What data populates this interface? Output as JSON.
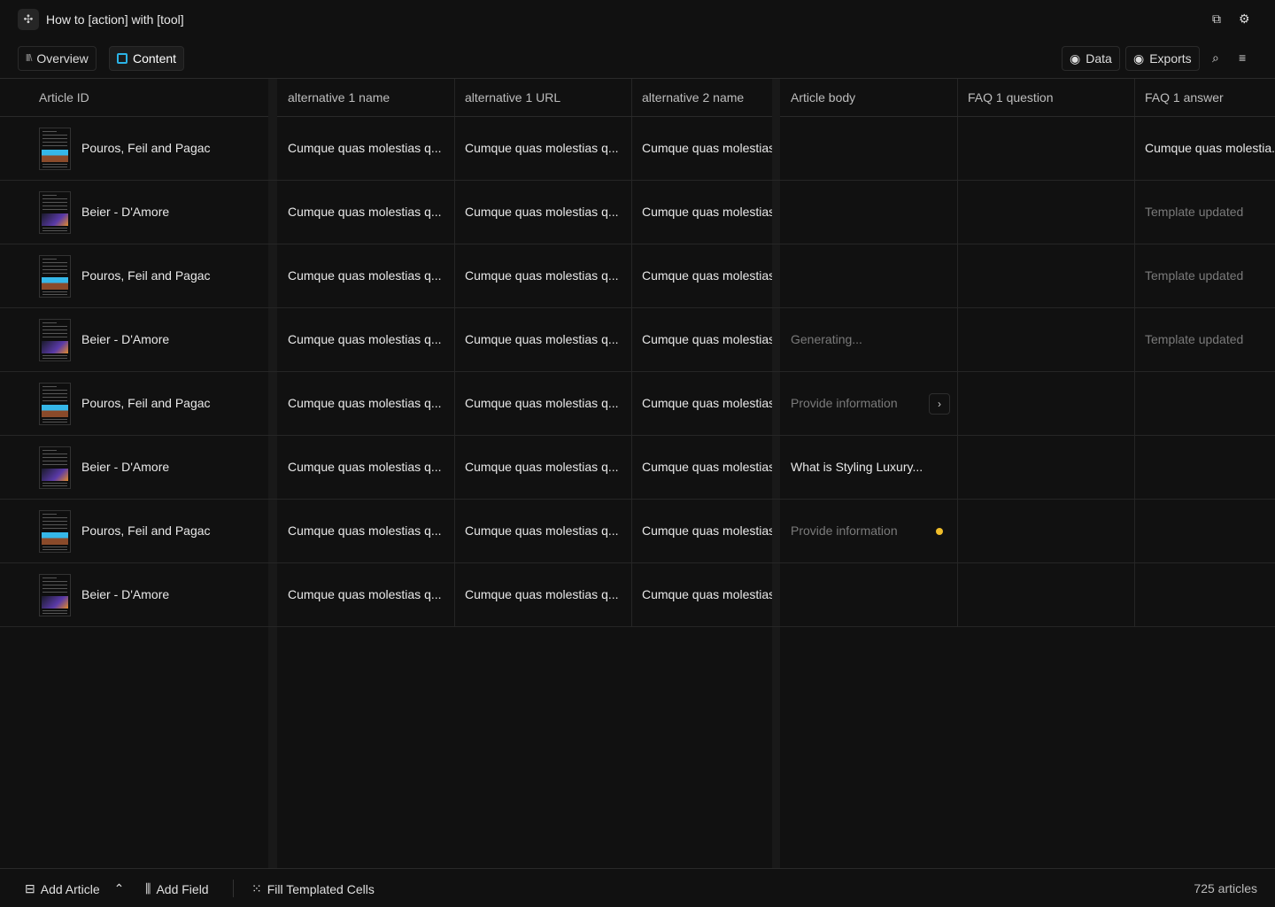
{
  "header": {
    "title": "How to [action] with [tool]",
    "logo_icon": "puzzle-icon",
    "right_icons": [
      "document-copy-icon",
      "gear-icon"
    ]
  },
  "tabs": [
    {
      "label": "Overview",
      "icon": "library-icon",
      "active": false
    },
    {
      "label": "Content",
      "icon": "content-icon",
      "active": true
    }
  ],
  "toolbar": {
    "data_label": "Data",
    "exports_label": "Exports"
  },
  "columns": [
    "Article ID",
    "alternative 1 name",
    "alternative 1 URL",
    "alternative 2 name",
    "Article body",
    "FAQ 1 question",
    "FAQ 1 answer"
  ],
  "rows": [
    {
      "id": "Pouros, Feil and Pagac",
      "thumb": "a",
      "c1": "Cumque quas molestias q...",
      "c2": "Cumque quas molestias q...",
      "c3": "Cumque quas molestias",
      "body": "",
      "body_state": "",
      "faq_q": "",
      "faq_a": "Cumque quas molestia...",
      "faq_a_muted": false
    },
    {
      "id": "Beier - D'Amore",
      "thumb": "b",
      "c1": "Cumque quas molestias q...",
      "c2": "Cumque quas molestias q...",
      "c3": "Cumque quas molestias",
      "body": "",
      "body_state": "",
      "faq_q": "",
      "faq_a": "Template updated",
      "faq_a_muted": true
    },
    {
      "id": "Pouros, Feil and Pagac",
      "thumb": "a",
      "c1": "Cumque quas molestias q...",
      "c2": "Cumque quas molestias q...",
      "c3": "Cumque quas molestias",
      "body": "",
      "body_state": "",
      "faq_q": "",
      "faq_a": "Template updated",
      "faq_a_muted": true
    },
    {
      "id": "Beier - D'Amore",
      "thumb": "b",
      "c1": "Cumque quas molestias q...",
      "c2": "Cumque quas molestias q...",
      "c3": "Cumque quas molestias",
      "body": "Generating...",
      "body_state": "muted",
      "faq_q": "",
      "faq_a": "Template updated",
      "faq_a_muted": true
    },
    {
      "id": "Pouros, Feil and Pagac",
      "thumb": "a",
      "c1": "Cumque quas molestias q...",
      "c2": "Cumque quas molestias q...",
      "c3": "Cumque quas molestias",
      "body": "Provide information",
      "body_state": "arrow",
      "faq_q": "",
      "faq_a": "",
      "faq_a_muted": false
    },
    {
      "id": "Beier - D'Amore",
      "thumb": "b",
      "c1": "Cumque quas molestias q...",
      "c2": "Cumque quas molestias q...",
      "c3": "Cumque quas molestias",
      "body": "What is Styling Luxury...",
      "body_state": "",
      "faq_q": "",
      "faq_a": "",
      "faq_a_muted": false
    },
    {
      "id": "Pouros, Feil and Pagac",
      "thumb": "a",
      "c1": "Cumque quas molestias q...",
      "c2": "Cumque quas molestias q...",
      "c3": "Cumque quas molestias",
      "body": "Provide information",
      "body_state": "dot",
      "faq_q": "",
      "faq_a": "",
      "faq_a_muted": false
    },
    {
      "id": "Beier - D'Amore",
      "thumb": "b",
      "c1": "Cumque quas molestias q...",
      "c2": "Cumque quas molestias q...",
      "c3": "Cumque quas molestias",
      "body": "",
      "body_state": "",
      "faq_q": "",
      "faq_a": "",
      "faq_a_muted": false
    }
  ],
  "footer": {
    "add_article": "Add Article",
    "add_field": "Add Field",
    "fill_templated": "Fill Templated Cells",
    "count": "725 articles"
  },
  "colors": {
    "accent": "#2bb3e6",
    "pending_dot": "#f0bd2a",
    "background": "#111111"
  }
}
